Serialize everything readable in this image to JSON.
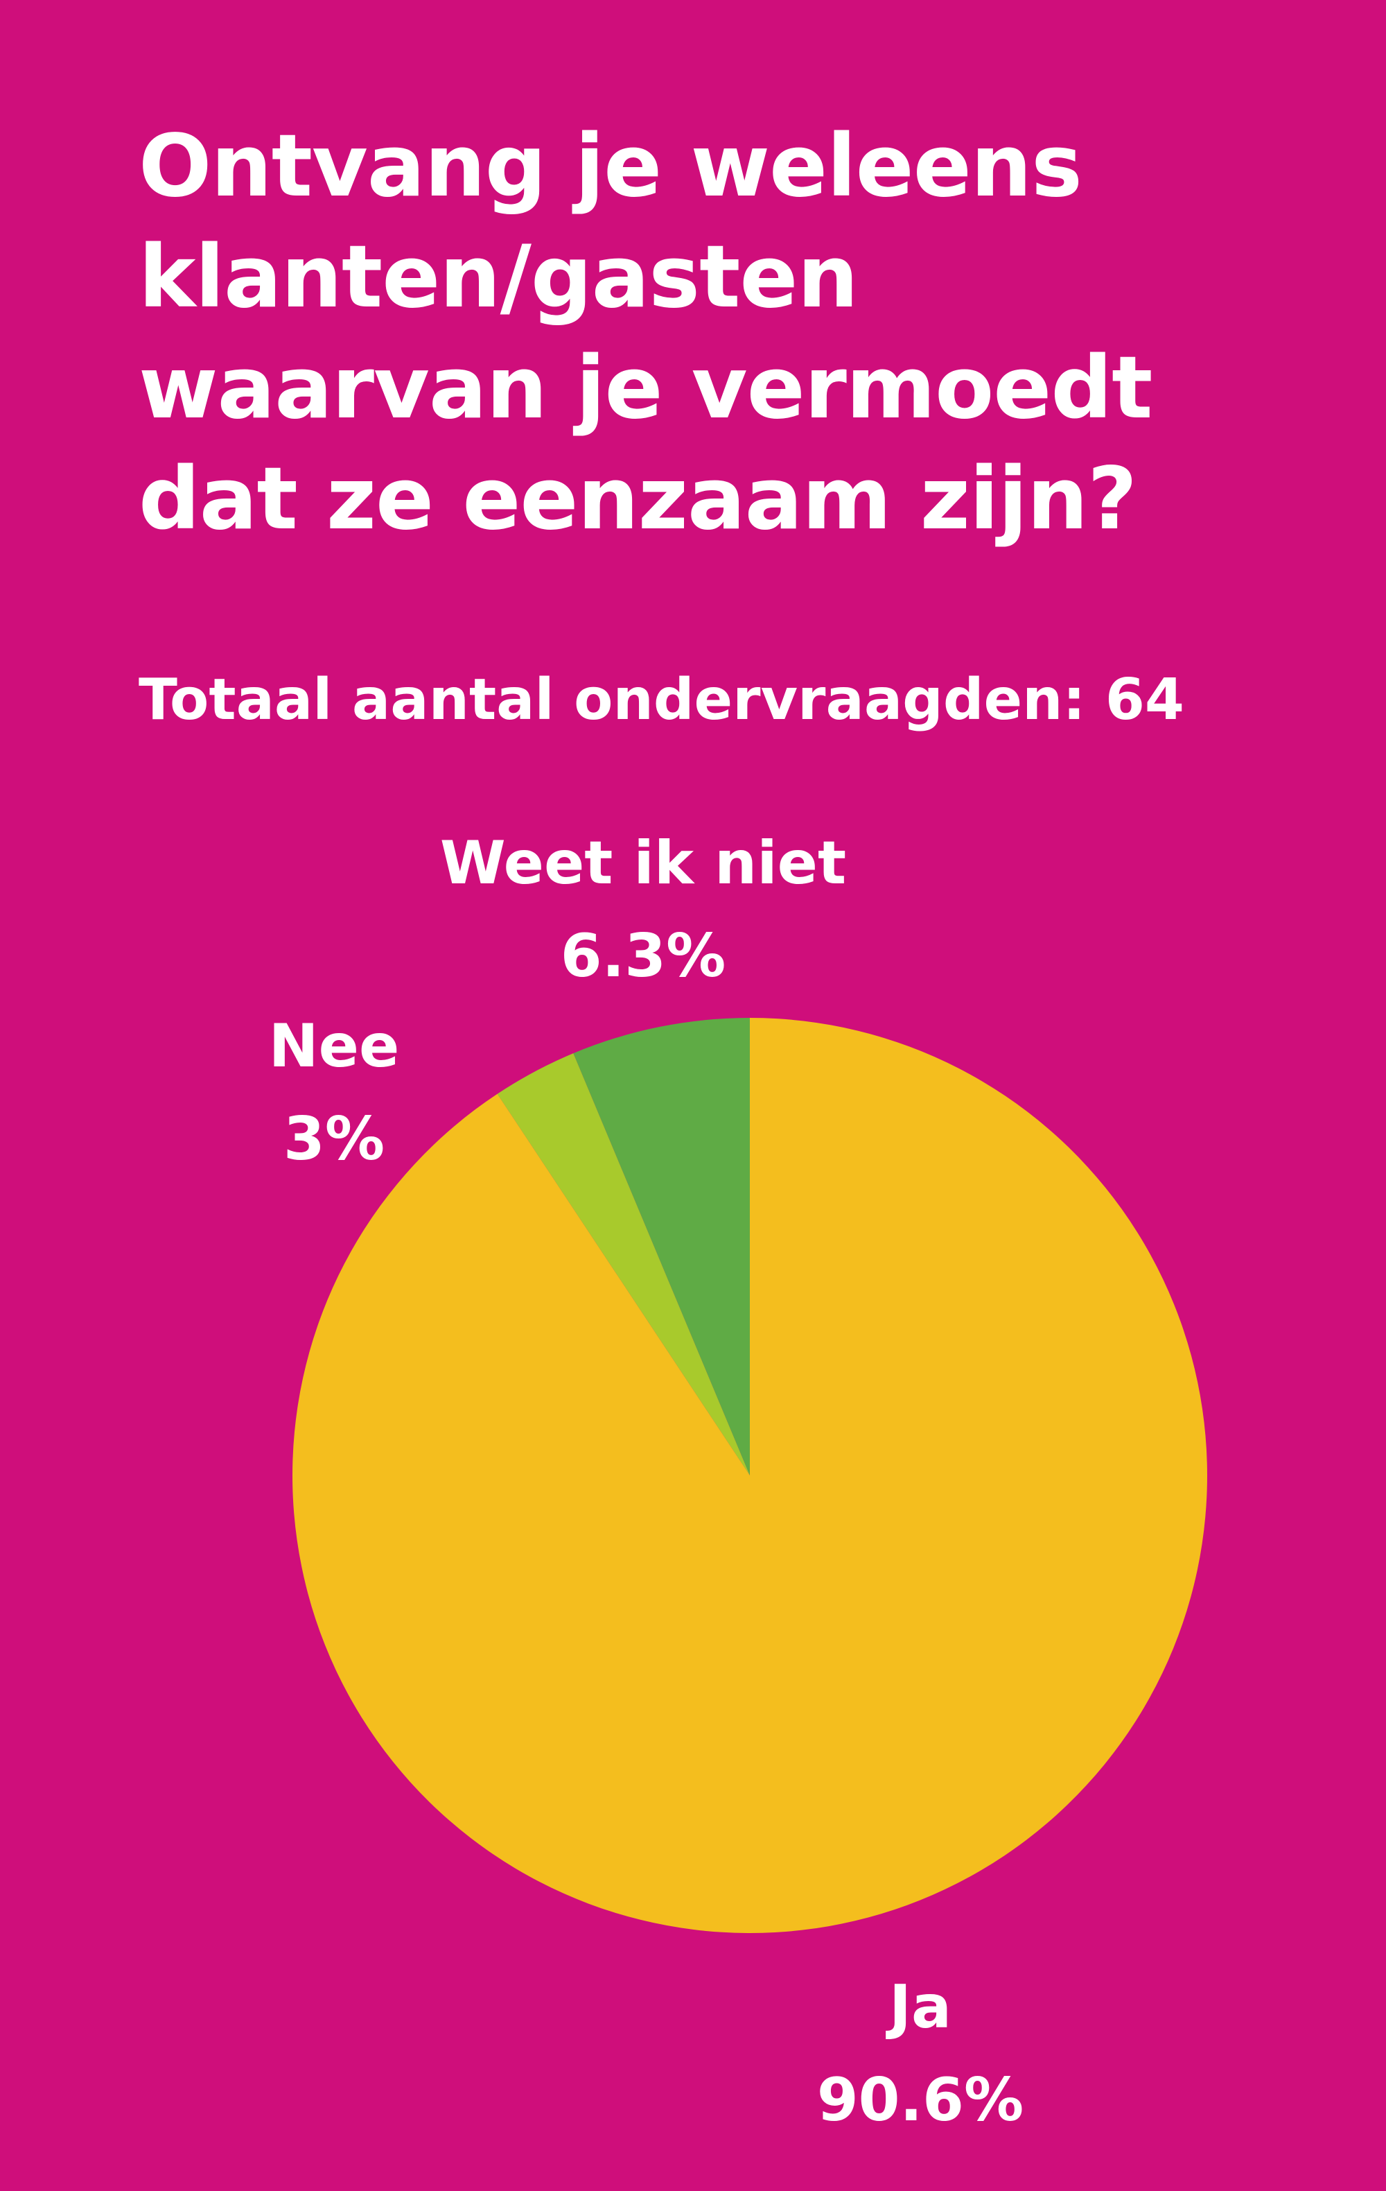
{
  "title_lines": [
    "Ontvang je weleens",
    "klanten/gasten",
    "waarvan je vermoedt",
    "dat ze eenzaam zijn?"
  ],
  "subtitle": "Totaal aantal ondervraagden: 64",
  "colors": {
    "background": "#cf0e7b",
    "ja": "#f4be1e",
    "nee": "#a8ca2c",
    "weet_ik_niet": "#5fab45",
    "text": "#ffffff"
  },
  "chart_data": {
    "type": "pie",
    "title": "Ontvang je weleens klanten/gasten waarvan je vermoedt dat ze eenzaam zijn?",
    "subtitle": "Totaal aantal ondervraagden: 64",
    "start_angle_deg": 0,
    "direction": "counterclockwise",
    "slices": [
      {
        "label": "Weet ik niet",
        "value": 6.3,
        "value_label": "6.3%",
        "color": "#5fab45"
      },
      {
        "label": "Nee",
        "value": 3,
        "value_label": "3%",
        "color": "#a8ca2c"
      },
      {
        "label": "Ja",
        "value": 90.6,
        "value_label": "90.6%",
        "color": "#f4be1e"
      }
    ]
  }
}
